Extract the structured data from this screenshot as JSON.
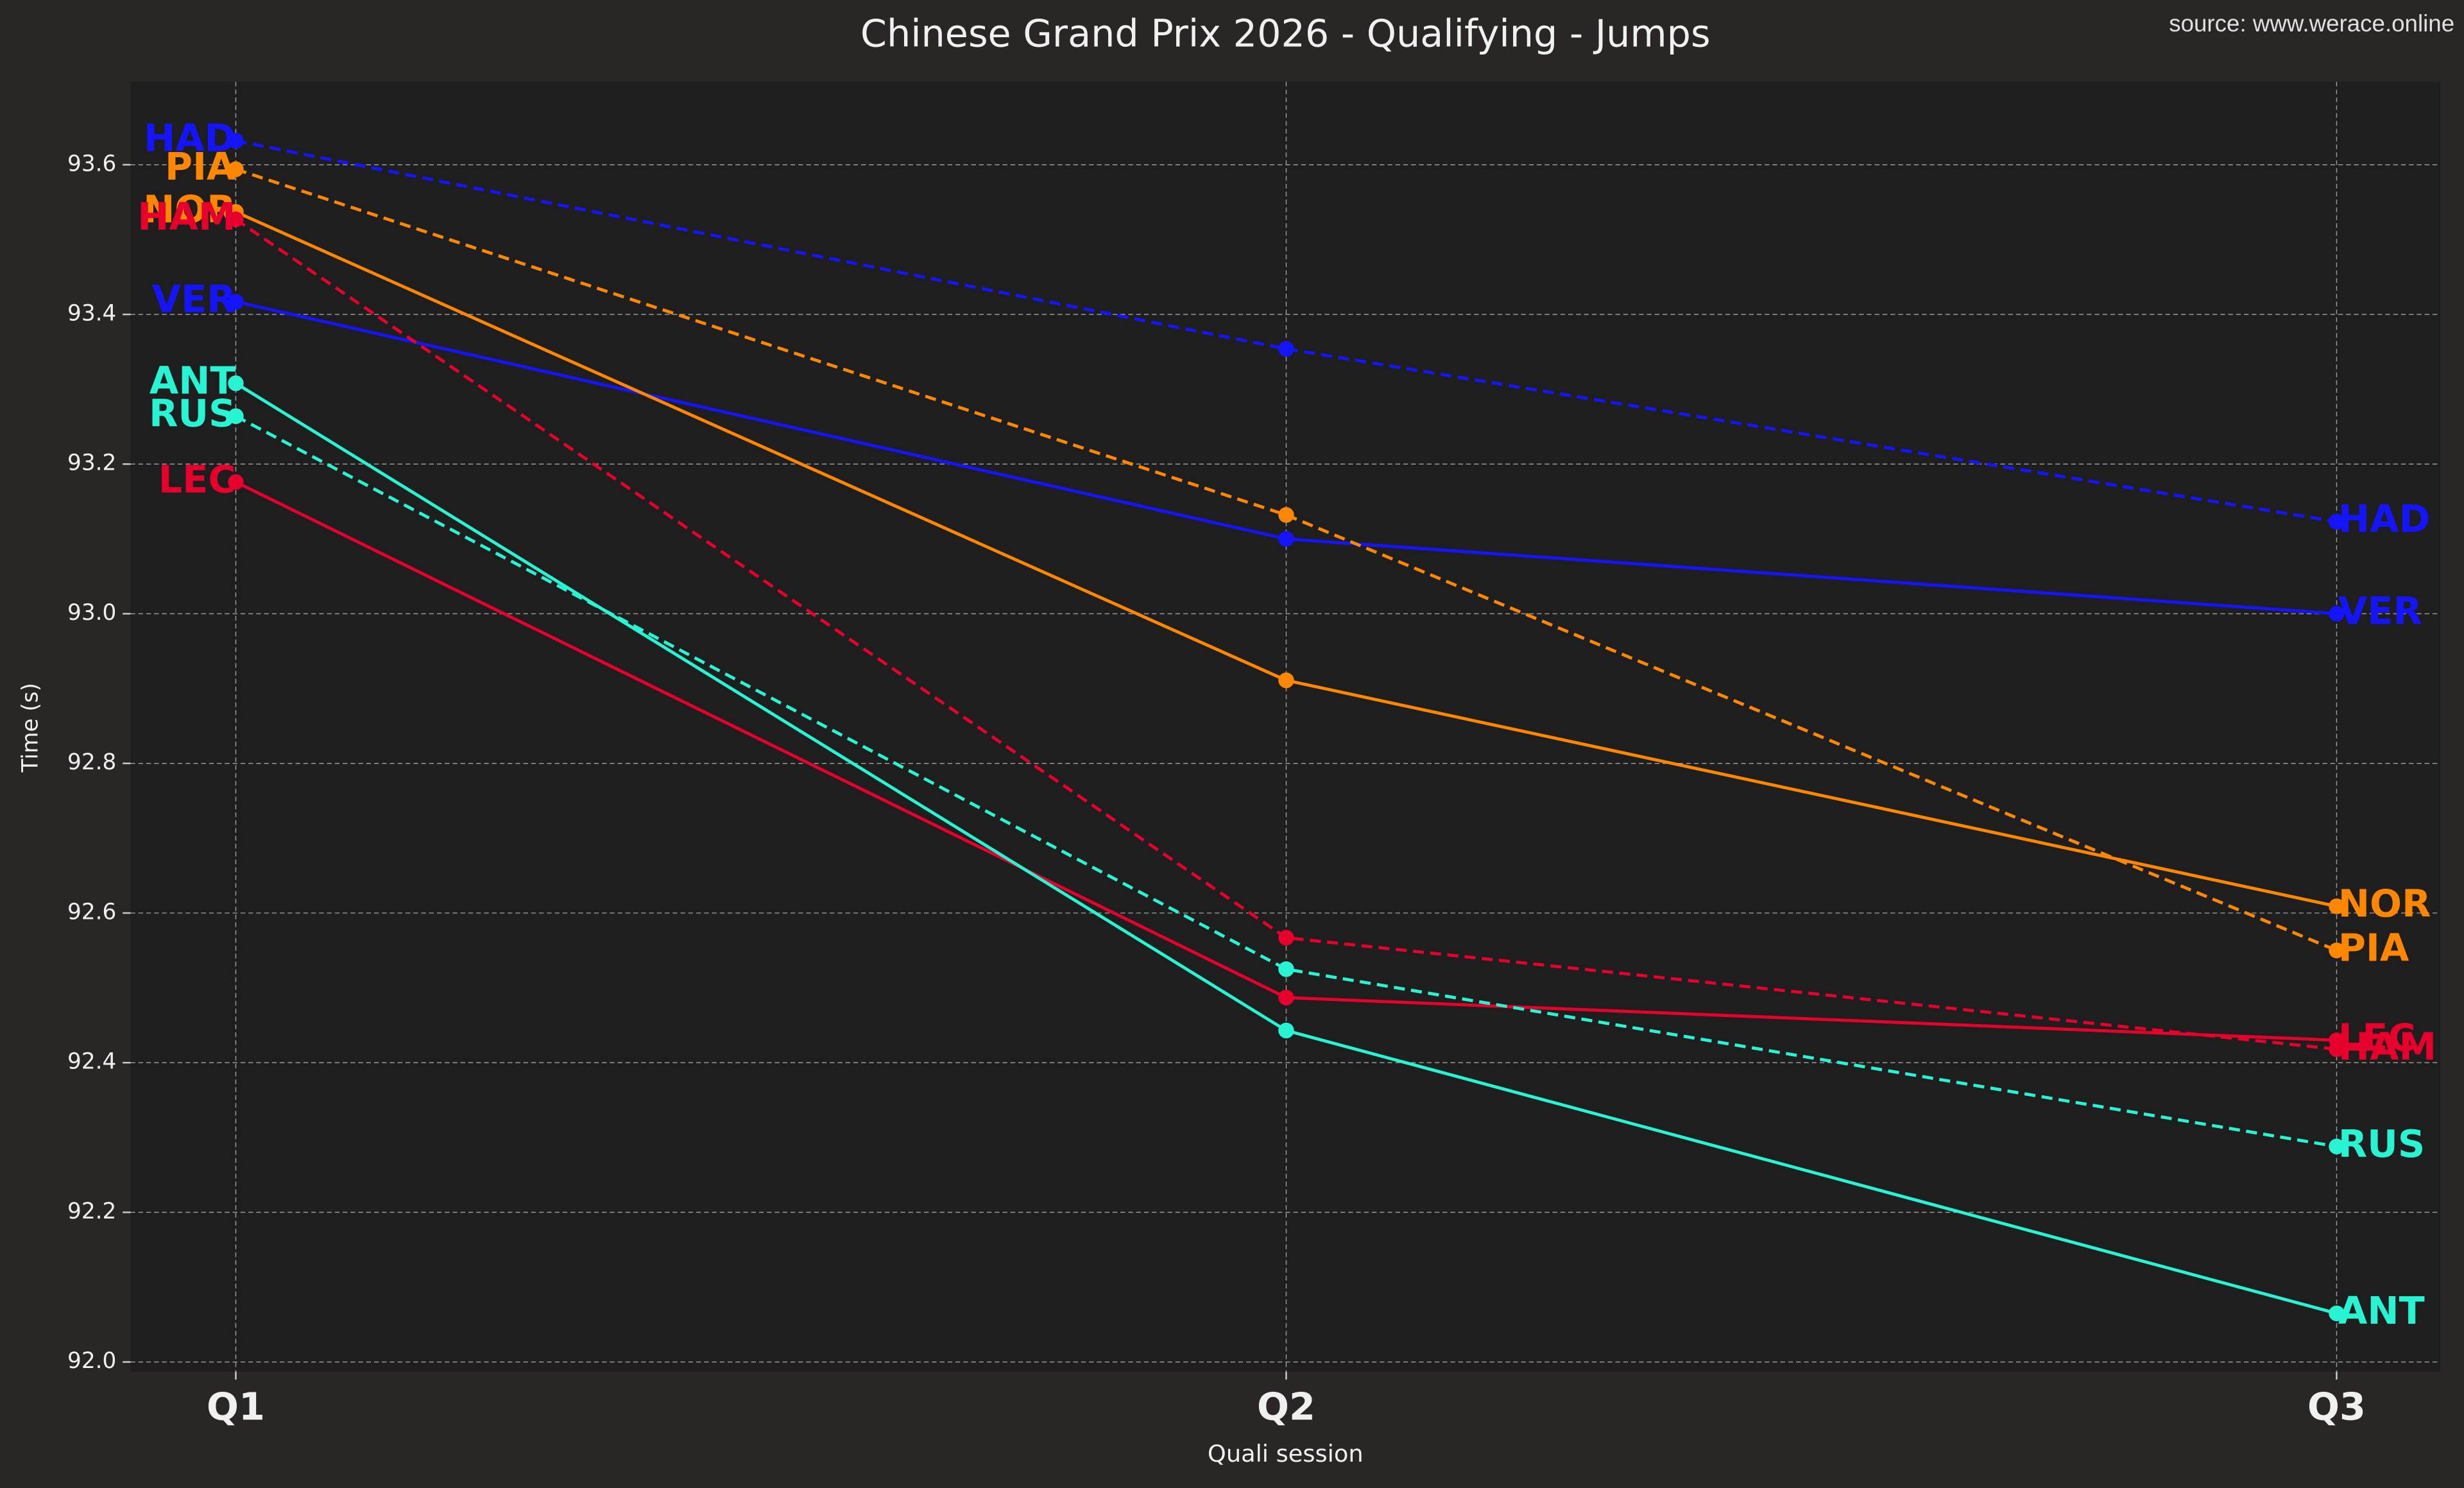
{
  "chart_data": {
    "type": "line",
    "title": "Chinese Grand Prix 2026 - Qualifying - Jumps",
    "source": "source: www.werace.online",
    "x_label": "Quali session",
    "y_label": "Time (s)",
    "categories": [
      "Q1",
      "Q2",
      "Q3"
    ],
    "ylim": [
      91.987,
      93.711
    ],
    "yticks": [
      {
        "value": 92.0,
        "label": "92.0"
      },
      92.2,
      92.4,
      92.6,
      92.8,
      {
        "value": 93.0,
        "label": "93.0"
      },
      93.2,
      93.4,
      93.6
    ],
    "grid": true,
    "series": [
      {
        "name": "HAD",
        "color": "#1414ff",
        "linestyle": "dashed",
        "values": [
          93.632,
          93.354,
          93.123
        ]
      },
      {
        "name": "VER",
        "color": "#1414ff",
        "linestyle": "solid",
        "values": [
          93.417,
          93.1,
          93.0
        ]
      },
      {
        "name": "PIA",
        "color": "#ff8700",
        "linestyle": "dashed",
        "values": [
          93.594,
          93.132,
          92.55
        ]
      },
      {
        "name": "NOR",
        "color": "#ff8700",
        "linestyle": "solid",
        "values": [
          93.537,
          92.911,
          92.609
        ]
      },
      {
        "name": "HAM",
        "color": "#e8002d",
        "linestyle": "dashed",
        "values": [
          93.527,
          92.567,
          92.418
        ]
      },
      {
        "name": "LEC",
        "color": "#e8002d",
        "linestyle": "solid",
        "values": [
          93.176,
          92.487,
          92.43
        ]
      },
      {
        "name": "ANT",
        "color": "#27f4d2",
        "linestyle": "solid",
        "values": [
          93.308,
          92.443,
          92.065
        ]
      },
      {
        "name": "RUS",
        "color": "#27f4d2",
        "linestyle": "dashed",
        "values": [
          93.264,
          92.525,
          92.288
        ]
      }
    ]
  }
}
